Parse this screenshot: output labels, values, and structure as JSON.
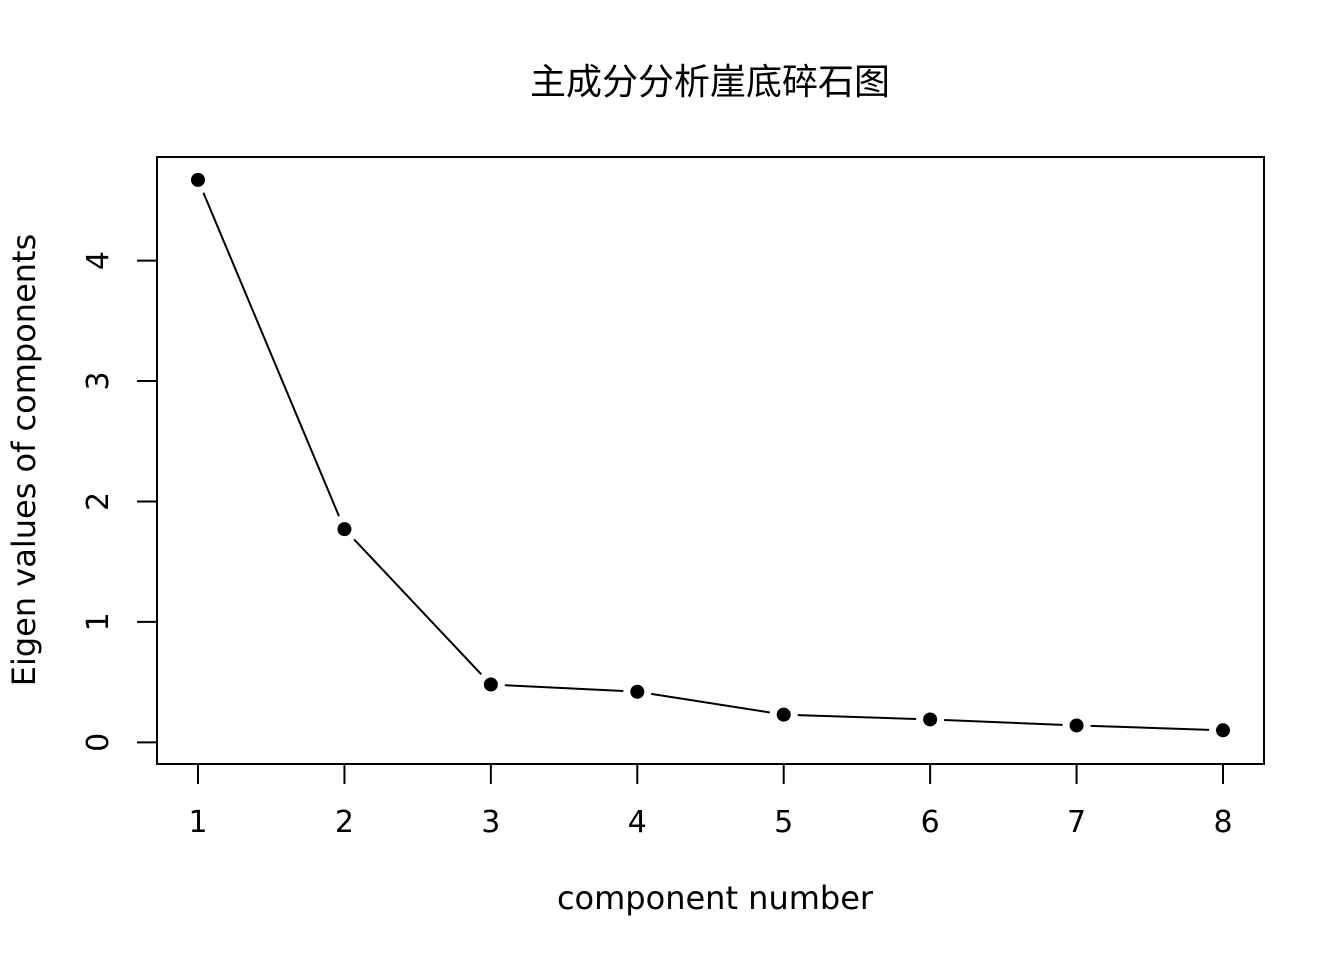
{
  "chart_data": {
    "type": "line",
    "title": "主成分分析崖底碎石图",
    "xlabel": "component number",
    "ylabel": "Eigen values of components",
    "x": [
      1,
      2,
      3,
      4,
      5,
      6,
      7,
      8
    ],
    "values": [
      4.67,
      1.77,
      0.48,
      0.42,
      0.23,
      0.19,
      0.14,
      0.1
    ],
    "xticks": [
      1,
      2,
      3,
      4,
      5,
      6,
      7,
      8
    ],
    "yticks": [
      0,
      1,
      2,
      3,
      4
    ],
    "xlim": [
      0.72,
      8.28
    ],
    "ylim": [
      -0.18,
      4.86
    ],
    "grid": false,
    "markers": "filled-circle",
    "colors": {
      "line": "#000000",
      "marker": "#000000",
      "frame": "#000000",
      "background": "#ffffff"
    }
  }
}
